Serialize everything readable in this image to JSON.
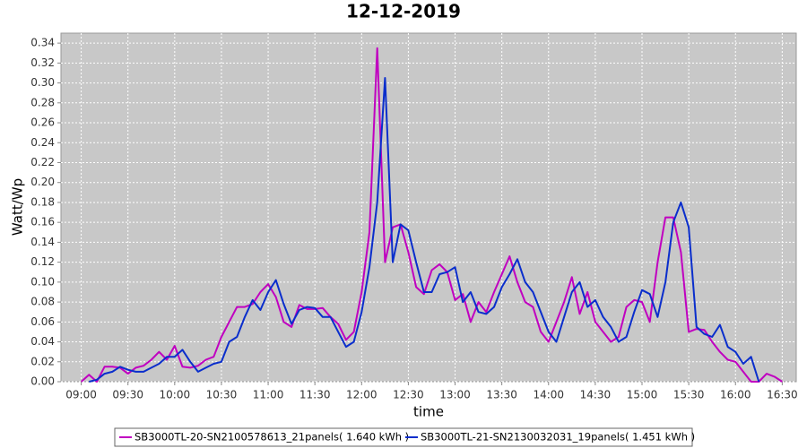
{
  "chart_data": {
    "type": "line",
    "title": "12-12-2019",
    "x_label": "time",
    "y_label": "Watt/Wp",
    "x": [
      "09:00",
      "09:05",
      "09:10",
      "09:15",
      "09:20",
      "09:25",
      "09:30",
      "09:35",
      "09:40",
      "09:45",
      "09:50",
      "09:55",
      "10:00",
      "10:05",
      "10:10",
      "10:15",
      "10:20",
      "10:25",
      "10:30",
      "10:35",
      "10:40",
      "10:45",
      "10:50",
      "10:55",
      "11:00",
      "11:05",
      "11:10",
      "11:15",
      "11:20",
      "11:25",
      "11:30",
      "11:35",
      "11:40",
      "11:45",
      "11:50",
      "11:55",
      "12:00",
      "12:05",
      "12:10",
      "12:15",
      "12:20",
      "12:25",
      "12:30",
      "12:35",
      "12:40",
      "12:45",
      "12:50",
      "12:55",
      "13:00",
      "13:05",
      "13:10",
      "13:15",
      "13:20",
      "13:25",
      "13:30",
      "13:35",
      "13:40",
      "13:45",
      "13:50",
      "13:55",
      "14:00",
      "14:05",
      "14:10",
      "14:15",
      "14:20",
      "14:25",
      "14:30",
      "14:35",
      "14:40",
      "14:45",
      "14:50",
      "14:55",
      "15:00",
      "15:05",
      "15:10",
      "15:15",
      "15:20",
      "15:25",
      "15:30",
      "15:35",
      "15:40",
      "15:45",
      "15:50",
      "15:55",
      "16:00",
      "16:05",
      "16:10",
      "16:15",
      "16:20",
      "16:25",
      "16:30"
    ],
    "series": [
      {
        "name": "SB3000TL-20-SN2100578613_21panels( 1.640 kWh )",
        "color": "#c000c0",
        "values": [
          0.0,
          0.007,
          0.0,
          0.015,
          0.015,
          0.014,
          0.008,
          0.014,
          0.016,
          0.022,
          0.03,
          0.022,
          0.036,
          0.015,
          0.014,
          0.016,
          0.022,
          0.025,
          0.045,
          0.06,
          0.075,
          0.075,
          0.078,
          0.09,
          0.098,
          0.085,
          0.06,
          0.055,
          0.077,
          0.073,
          0.073,
          0.074,
          0.065,
          0.058,
          0.042,
          0.05,
          0.09,
          0.15,
          0.335,
          0.12,
          0.155,
          0.158,
          0.13,
          0.095,
          0.088,
          0.112,
          0.118,
          0.11,
          0.082,
          0.088,
          0.06,
          0.08,
          0.07,
          0.09,
          0.108,
          0.126,
          0.1,
          0.08,
          0.075,
          0.05,
          0.04,
          0.06,
          0.08,
          0.105,
          0.068,
          0.09,
          0.06,
          0.05,
          0.04,
          0.045,
          0.075,
          0.082,
          0.08,
          0.06,
          0.12,
          0.165,
          0.165,
          0.13,
          0.05,
          0.053,
          0.052,
          0.04,
          0.03,
          0.022,
          0.02,
          0.01,
          0.0,
          0.0,
          0.008,
          0.005,
          0.0
        ]
      },
      {
        "name": "SB3000TL-21-SN2130032031_19panels( 1.451 kWh )",
        "color": "#0a2ecc",
        "values": [
          null,
          0.0,
          0.002,
          0.008,
          0.01,
          0.015,
          0.012,
          0.01,
          0.01,
          0.014,
          0.018,
          0.025,
          0.025,
          0.032,
          0.02,
          0.01,
          0.014,
          0.018,
          0.02,
          0.04,
          0.045,
          0.065,
          0.082,
          0.072,
          0.09,
          0.102,
          0.078,
          0.058,
          0.072,
          0.075,
          0.074,
          0.065,
          0.065,
          0.05,
          0.035,
          0.04,
          0.07,
          0.115,
          0.18,
          0.305,
          0.12,
          0.158,
          0.152,
          0.12,
          0.09,
          0.09,
          0.108,
          0.11,
          0.115,
          0.08,
          0.09,
          0.07,
          0.068,
          0.075,
          0.095,
          0.108,
          0.123,
          0.1,
          0.09,
          0.07,
          0.05,
          0.04,
          0.065,
          0.09,
          0.1,
          0.075,
          0.082,
          0.065,
          0.055,
          0.04,
          0.045,
          0.07,
          0.092,
          0.088,
          0.065,
          0.1,
          0.16,
          0.18,
          0.155,
          0.055,
          0.048,
          0.045,
          0.057,
          0.035,
          0.03,
          0.018,
          0.025,
          0.0,
          null,
          null,
          null
        ]
      }
    ],
    "xlim": [
      "08:47",
      "16:39"
    ],
    "xticks": [
      "09:00",
      "09:30",
      "10:00",
      "10:30",
      "11:00",
      "11:30",
      "12:00",
      "12:30",
      "13:00",
      "13:30",
      "14:00",
      "14:30",
      "15:00",
      "15:30",
      "16:00",
      "16:30"
    ],
    "ylim": [
      0,
      0.35
    ],
    "yticks": [
      {
        "value": 0,
        "label": "0.00"
      },
      {
        "value": 0.02,
        "label": "0.02"
      },
      {
        "value": 0.04,
        "label": "0.04"
      },
      {
        "value": 0.06,
        "label": "0.06"
      },
      {
        "value": 0.08,
        "label": "0.08"
      },
      {
        "value": 0.1,
        "label": "0.10"
      },
      {
        "value": 0.12,
        "label": "0.12"
      },
      {
        "value": 0.14,
        "label": "0.14"
      },
      {
        "value": 0.16,
        "label": "0.16"
      },
      {
        "value": 0.18,
        "label": "0.18"
      },
      {
        "value": 0.2,
        "label": "0.20"
      },
      {
        "value": 0.22,
        "label": "0.22"
      },
      {
        "value": 0.24,
        "label": "0.24"
      },
      {
        "value": 0.26,
        "label": "0.26"
      },
      {
        "value": 0.28,
        "label": "0.28"
      },
      {
        "value": 0.3,
        "label": "0.30"
      },
      {
        "value": 0.32,
        "label": "0.32"
      },
      {
        "value": 0.34,
        "label": "0.34"
      }
    ],
    "grid": true,
    "legend": "bottom"
  }
}
